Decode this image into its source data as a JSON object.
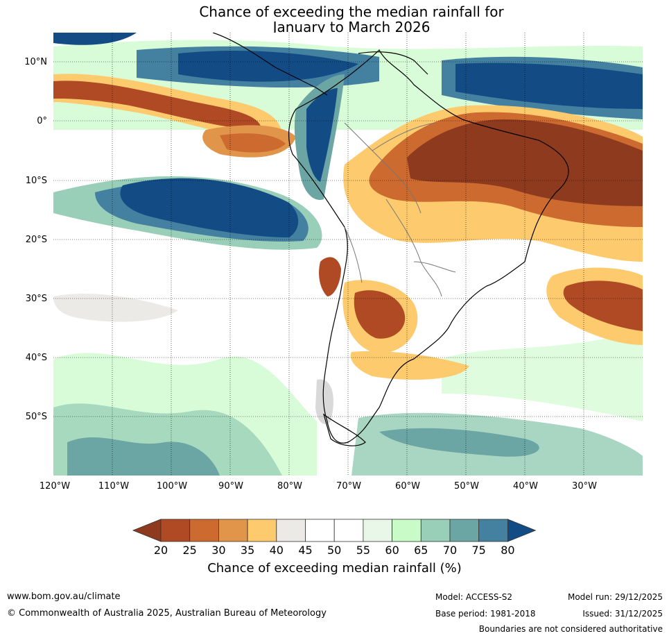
{
  "title": {
    "line1": "Chance of exceeding the median rainfall for",
    "line2": "January to March 2026"
  },
  "map": {
    "region": "South America",
    "lat_labels": [
      "10°N",
      "0°",
      "10°S",
      "20°S",
      "30°S",
      "40°S",
      "50°S"
    ],
    "lon_labels": [
      "120°W",
      "110°W",
      "100°W",
      "90°W",
      "80°W",
      "70°W",
      "60°W",
      "50°W",
      "40°W",
      "30°W"
    ]
  },
  "colorbar": {
    "ticks": [
      "20",
      "25",
      "30",
      "35",
      "40",
      "45",
      "50",
      "55",
      "60",
      "65",
      "70",
      "75",
      "80"
    ],
    "colors": [
      "#8e3a1f",
      "#b04a25",
      "#cc6a2f",
      "#e0954a",
      "#fdcb6e",
      "#eceae6",
      "#ffffff",
      "#ffffff",
      "#e9f7e9",
      "#c9fbc8",
      "#99cfb8",
      "#6ba5a4",
      "#44809f",
      "#134c85"
    ],
    "title": "Chance of exceeding median rainfall (%)"
  },
  "footer": {
    "url": "www.bom.gov.au/climate",
    "copyright": "© Commonwealth of Australia 2025, Australian Bureau of Meteorology",
    "model": "Model: ACCESS-S2",
    "base_period": "Base period: 1981-2018",
    "model_run": "Model run: 29/12/2025",
    "issued": "Issued: 31/12/2025",
    "disclaimer": "Boundaries are not considered authoritative"
  }
}
